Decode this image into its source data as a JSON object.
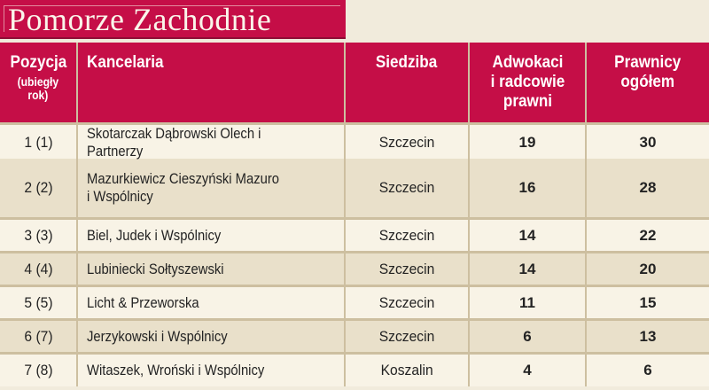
{
  "title": "Pomorze Zachodnie",
  "colors": {
    "accent_crimson": "#c50e47",
    "accent_crimson_dark": "#8e0d36",
    "row_light": "#f8f3e6",
    "row_dark": "#e9e0ca",
    "separator_tan": "#cdbfa0",
    "page_background": "#f1ebdc",
    "text_dark": "#232323",
    "text_light": "#ffffff"
  },
  "table": {
    "columns": [
      {
        "label": "Pozycja",
        "sublabel": "(ubiegły\nrok)"
      },
      {
        "label": "Kancelaria"
      },
      {
        "label": "Siedziba"
      },
      {
        "label": "Adwokaci\ni radcowie\nprawni"
      },
      {
        "label": "Prawnicy\nogółem"
      }
    ],
    "rows": [
      {
        "position": "1 (1)",
        "firm": "Skotarczak Dąbrowski Olech i Partnerzy",
        "city": "Szczecin",
        "advocates": "19",
        "total": "30"
      },
      {
        "position": "2 (2)",
        "firm": "Mazurkiewicz Cieszyński Mazuro\ni Wspólnicy",
        "city": "Szczecin",
        "advocates": "16",
        "total": "28"
      },
      {
        "position": "3 (3)",
        "firm": "Biel, Judek i Wspólnicy",
        "city": "Szczecin",
        "advocates": "14",
        "total": "22"
      },
      {
        "position": "4 (4)",
        "firm": "Lubiniecki Sołtyszewski",
        "city": "Szczecin",
        "advocates": "14",
        "total": "20"
      },
      {
        "position": "5 (5)",
        "firm": "Licht & Przeworska",
        "city": "Szczecin",
        "advocates": "11",
        "total": "15"
      },
      {
        "position": "6 (7)",
        "firm": "Jerzykowski i Wspólnicy",
        "city": "Szczecin",
        "advocates": "6",
        "total": "13"
      },
      {
        "position": "7 (8)",
        "firm": "Witaszek, Wroński i Wspólnicy",
        "city": "Koszalin",
        "advocates": "4",
        "total": "6"
      }
    ]
  }
}
